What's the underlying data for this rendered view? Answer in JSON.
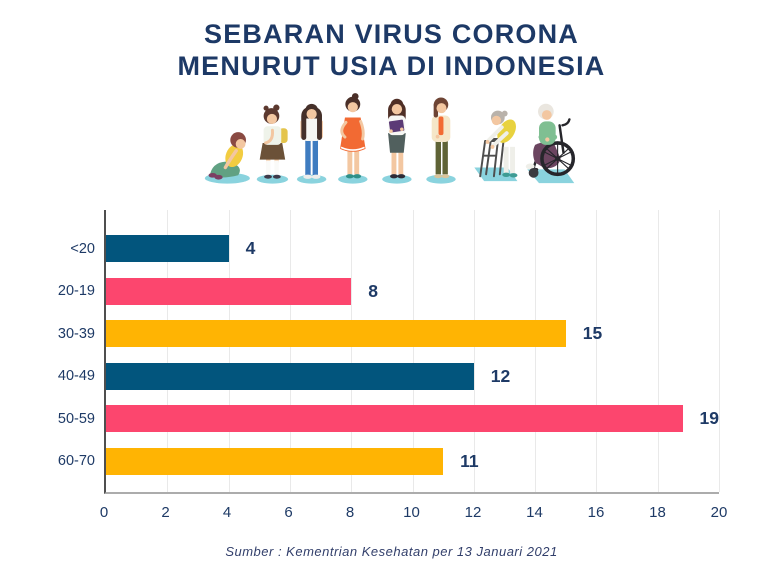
{
  "title": {
    "line1": "SEBARAN VIRUS CORONA",
    "line2": "MENURUT USIA DI INDONESIA"
  },
  "source_note": "Sumber : Kementrian Kesehatan per 13 Januari 2021",
  "illustration": {
    "figures": [
      "sitting-child",
      "schoolgirl",
      "teenager",
      "young-woman",
      "adult-woman-with-folder",
      "middle-aged-woman",
      "elderly-woman-with-walker",
      "elderly-woman-in-wheelchair"
    ],
    "shadow_color": "#8AD3DE"
  },
  "chart_data": {
    "type": "bar",
    "orientation": "horizontal",
    "title": "SEBARAN VIRUS CORONA MENURUT USIA DI INDONESIA",
    "categories": [
      "<20",
      "20-19",
      "30-39",
      "40-49",
      "50-59",
      "60-70"
    ],
    "values": [
      4,
      8,
      15,
      12,
      19,
      11
    ],
    "bar_colors": [
      "#02557D",
      "#FC466E",
      "#FFB403",
      "#02557D",
      "#FC466E",
      "#FFB403"
    ],
    "xlabel": "",
    "ylabel": "",
    "xlim": [
      0,
      20
    ],
    "xticks": [
      0,
      2,
      4,
      6,
      8,
      10,
      12,
      14,
      16,
      18,
      20
    ],
    "grid": "vertical",
    "label_color": "#1E3A66"
  },
  "colors": {
    "title_navy": "#1D3966",
    "axis_line": "#ACACAC",
    "yaxis_line": "#4F4F4F",
    "gridline": "#E9E9E9"
  }
}
